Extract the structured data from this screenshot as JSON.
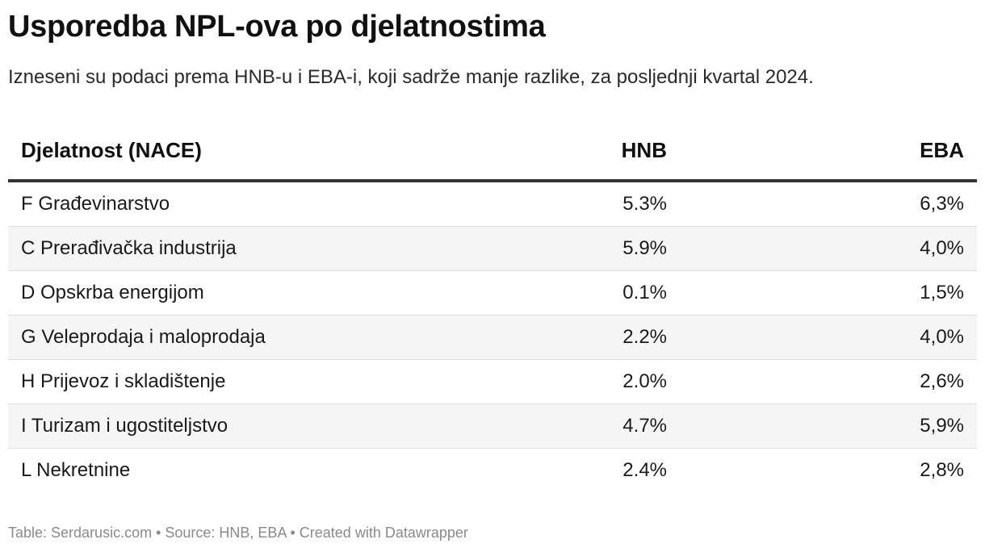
{
  "title": "Usporedba NPL-ova po djelatnostima",
  "subtitle": "Izneseni su podaci prema HNB-u i EBA-i, koji sadrže manje razlike, za posljednji kvartal 2024.",
  "footer": {
    "prefix": "Table: Serdarusic.com",
    "sep1": " • ",
    "source": "Source: HNB, EBA",
    "sep2": " • ",
    "created": "Created with Datawrapper"
  },
  "chart_data": {
    "type": "table",
    "title": "Usporedba NPL-ova po djelatnostima",
    "subtitle": "Izneseni su podaci prema HNB-u i EBA-i, koji sadrže manje razlike, za posljednji kvartal 2024.",
    "columns": [
      "Djelatnost (NACE)",
      "HNB",
      "EBA"
    ],
    "rows": [
      [
        "F Građevinarstvo",
        "5.3%",
        "6,3%"
      ],
      [
        "C Prerađivačka industrija",
        "5.9%",
        "4,0%"
      ],
      [
        "D Opskrba energijom",
        "0.1%",
        "1,5%"
      ],
      [
        "G Veleprodaja i maloprodaja",
        "2.2%",
        "4,0%"
      ],
      [
        "H Prijevoz i skladištenje",
        "2.0%",
        "2,6%"
      ],
      [
        "I Turizam i ugostiteljstvo",
        "4.7%",
        "5,9%"
      ],
      [
        "L Nekretnine",
        "2.4%",
        "2,8%"
      ]
    ]
  }
}
